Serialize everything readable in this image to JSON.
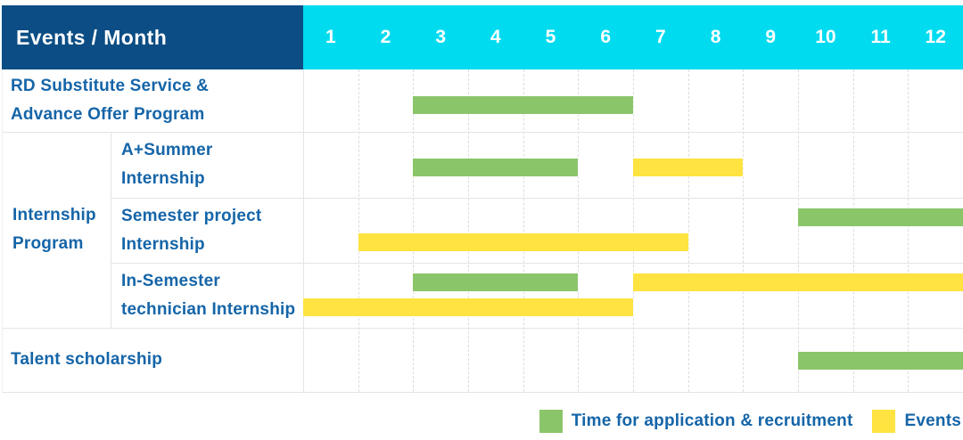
{
  "header": {
    "corner_label": "Events / Month",
    "months": [
      "1",
      "2",
      "3",
      "4",
      "5",
      "6",
      "7",
      "8",
      "9",
      "10",
      "11",
      "12"
    ]
  },
  "rows": [
    {
      "group": "",
      "label_lines": [
        "RD Substitute Service &",
        "Advance Offer Program"
      ],
      "bar_lines": [
        [
          {
            "series": "application",
            "start": 3,
            "end": 6
          }
        ]
      ]
    },
    {
      "group": "Internship Program",
      "label_lines": [
        "A+Summer",
        "Internship"
      ],
      "bar_lines": [
        [
          {
            "series": "application",
            "start": 3,
            "end": 5
          },
          {
            "series": "events",
            "start": 7,
            "end": 8
          }
        ]
      ]
    },
    {
      "group": "Internship Program",
      "label_lines": [
        "Semester project",
        "Internship"
      ],
      "bar_lines": [
        [
          {
            "series": "application",
            "start": 10,
            "end": 12
          }
        ],
        [
          {
            "series": "events",
            "start": 2,
            "end": 7
          }
        ]
      ]
    },
    {
      "group": "Internship Program",
      "label_lines": [
        "In-Semester",
        "technician Internship"
      ],
      "bar_lines": [
        [
          {
            "series": "application",
            "start": 3,
            "end": 5
          },
          {
            "series": "events",
            "start": 7,
            "end": 12
          }
        ],
        [
          {
            "series": "events",
            "start": 1,
            "end": 6
          }
        ]
      ]
    },
    {
      "group": "",
      "label_lines": [
        "Talent scholarship"
      ],
      "bar_lines": [
        [
          {
            "series": "application",
            "start": 10,
            "end": 12
          }
        ]
      ]
    }
  ],
  "group_label_lines": [
    "Internship",
    "Program"
  ],
  "legend": [
    {
      "series": "application",
      "label": "Time for application & recruitment"
    },
    {
      "series": "events",
      "label": "Events"
    }
  ],
  "colors": {
    "application": "#8BC56A",
    "events": "#FFE340",
    "header_bg": "#0B4D84",
    "months_bg": "#00DBF0",
    "label_text": "#1565A8",
    "header_text": "#FFFFFF"
  },
  "chart_data": {
    "type": "bar",
    "subtype": "gantt-timeline",
    "title": "Events / Month",
    "x_axis": {
      "label": "Month",
      "ticks": [
        "1",
        "2",
        "3",
        "4",
        "5",
        "6",
        "7",
        "8",
        "9",
        "10",
        "11",
        "12"
      ],
      "range": [
        1,
        12
      ]
    },
    "grid": "dashed-vertical-month-lines",
    "legend_position": "bottom-right",
    "legend": [
      {
        "name": "Time for application & recruitment",
        "color": "#8BC56A"
      },
      {
        "name": "Events",
        "color": "#FFE340"
      }
    ],
    "rows": [
      {
        "group": "",
        "label": "RD Substitute Service & Advance Offer Program",
        "segments": [
          {
            "series": "Time for application & recruitment",
            "start_month": 3,
            "end_month": 6
          }
        ]
      },
      {
        "group": "Internship Program",
        "label": "A+Summer Internship",
        "segments": [
          {
            "series": "Time for application & recruitment",
            "start_month": 3,
            "end_month": 5
          },
          {
            "series": "Events",
            "start_month": 7,
            "end_month": 8
          }
        ]
      },
      {
        "group": "Internship Program",
        "label": "Semester project Internship",
        "segments": [
          {
            "series": "Time for application & recruitment",
            "start_month": 10,
            "end_month": 12
          },
          {
            "series": "Events",
            "start_month": 2,
            "end_month": 7
          }
        ]
      },
      {
        "group": "Internship Program",
        "label": "In-Semester technician Internship",
        "segments": [
          {
            "series": "Time for application & recruitment",
            "start_month": 3,
            "end_month": 5
          },
          {
            "series": "Events",
            "start_month": 7,
            "end_month": 12
          },
          {
            "series": "Events",
            "start_month": 1,
            "end_month": 6
          }
        ]
      },
      {
        "group": "",
        "label": "Talent scholarship",
        "segments": [
          {
            "series": "Time for application & recruitment",
            "start_month": 10,
            "end_month": 12
          }
        ]
      }
    ]
  }
}
